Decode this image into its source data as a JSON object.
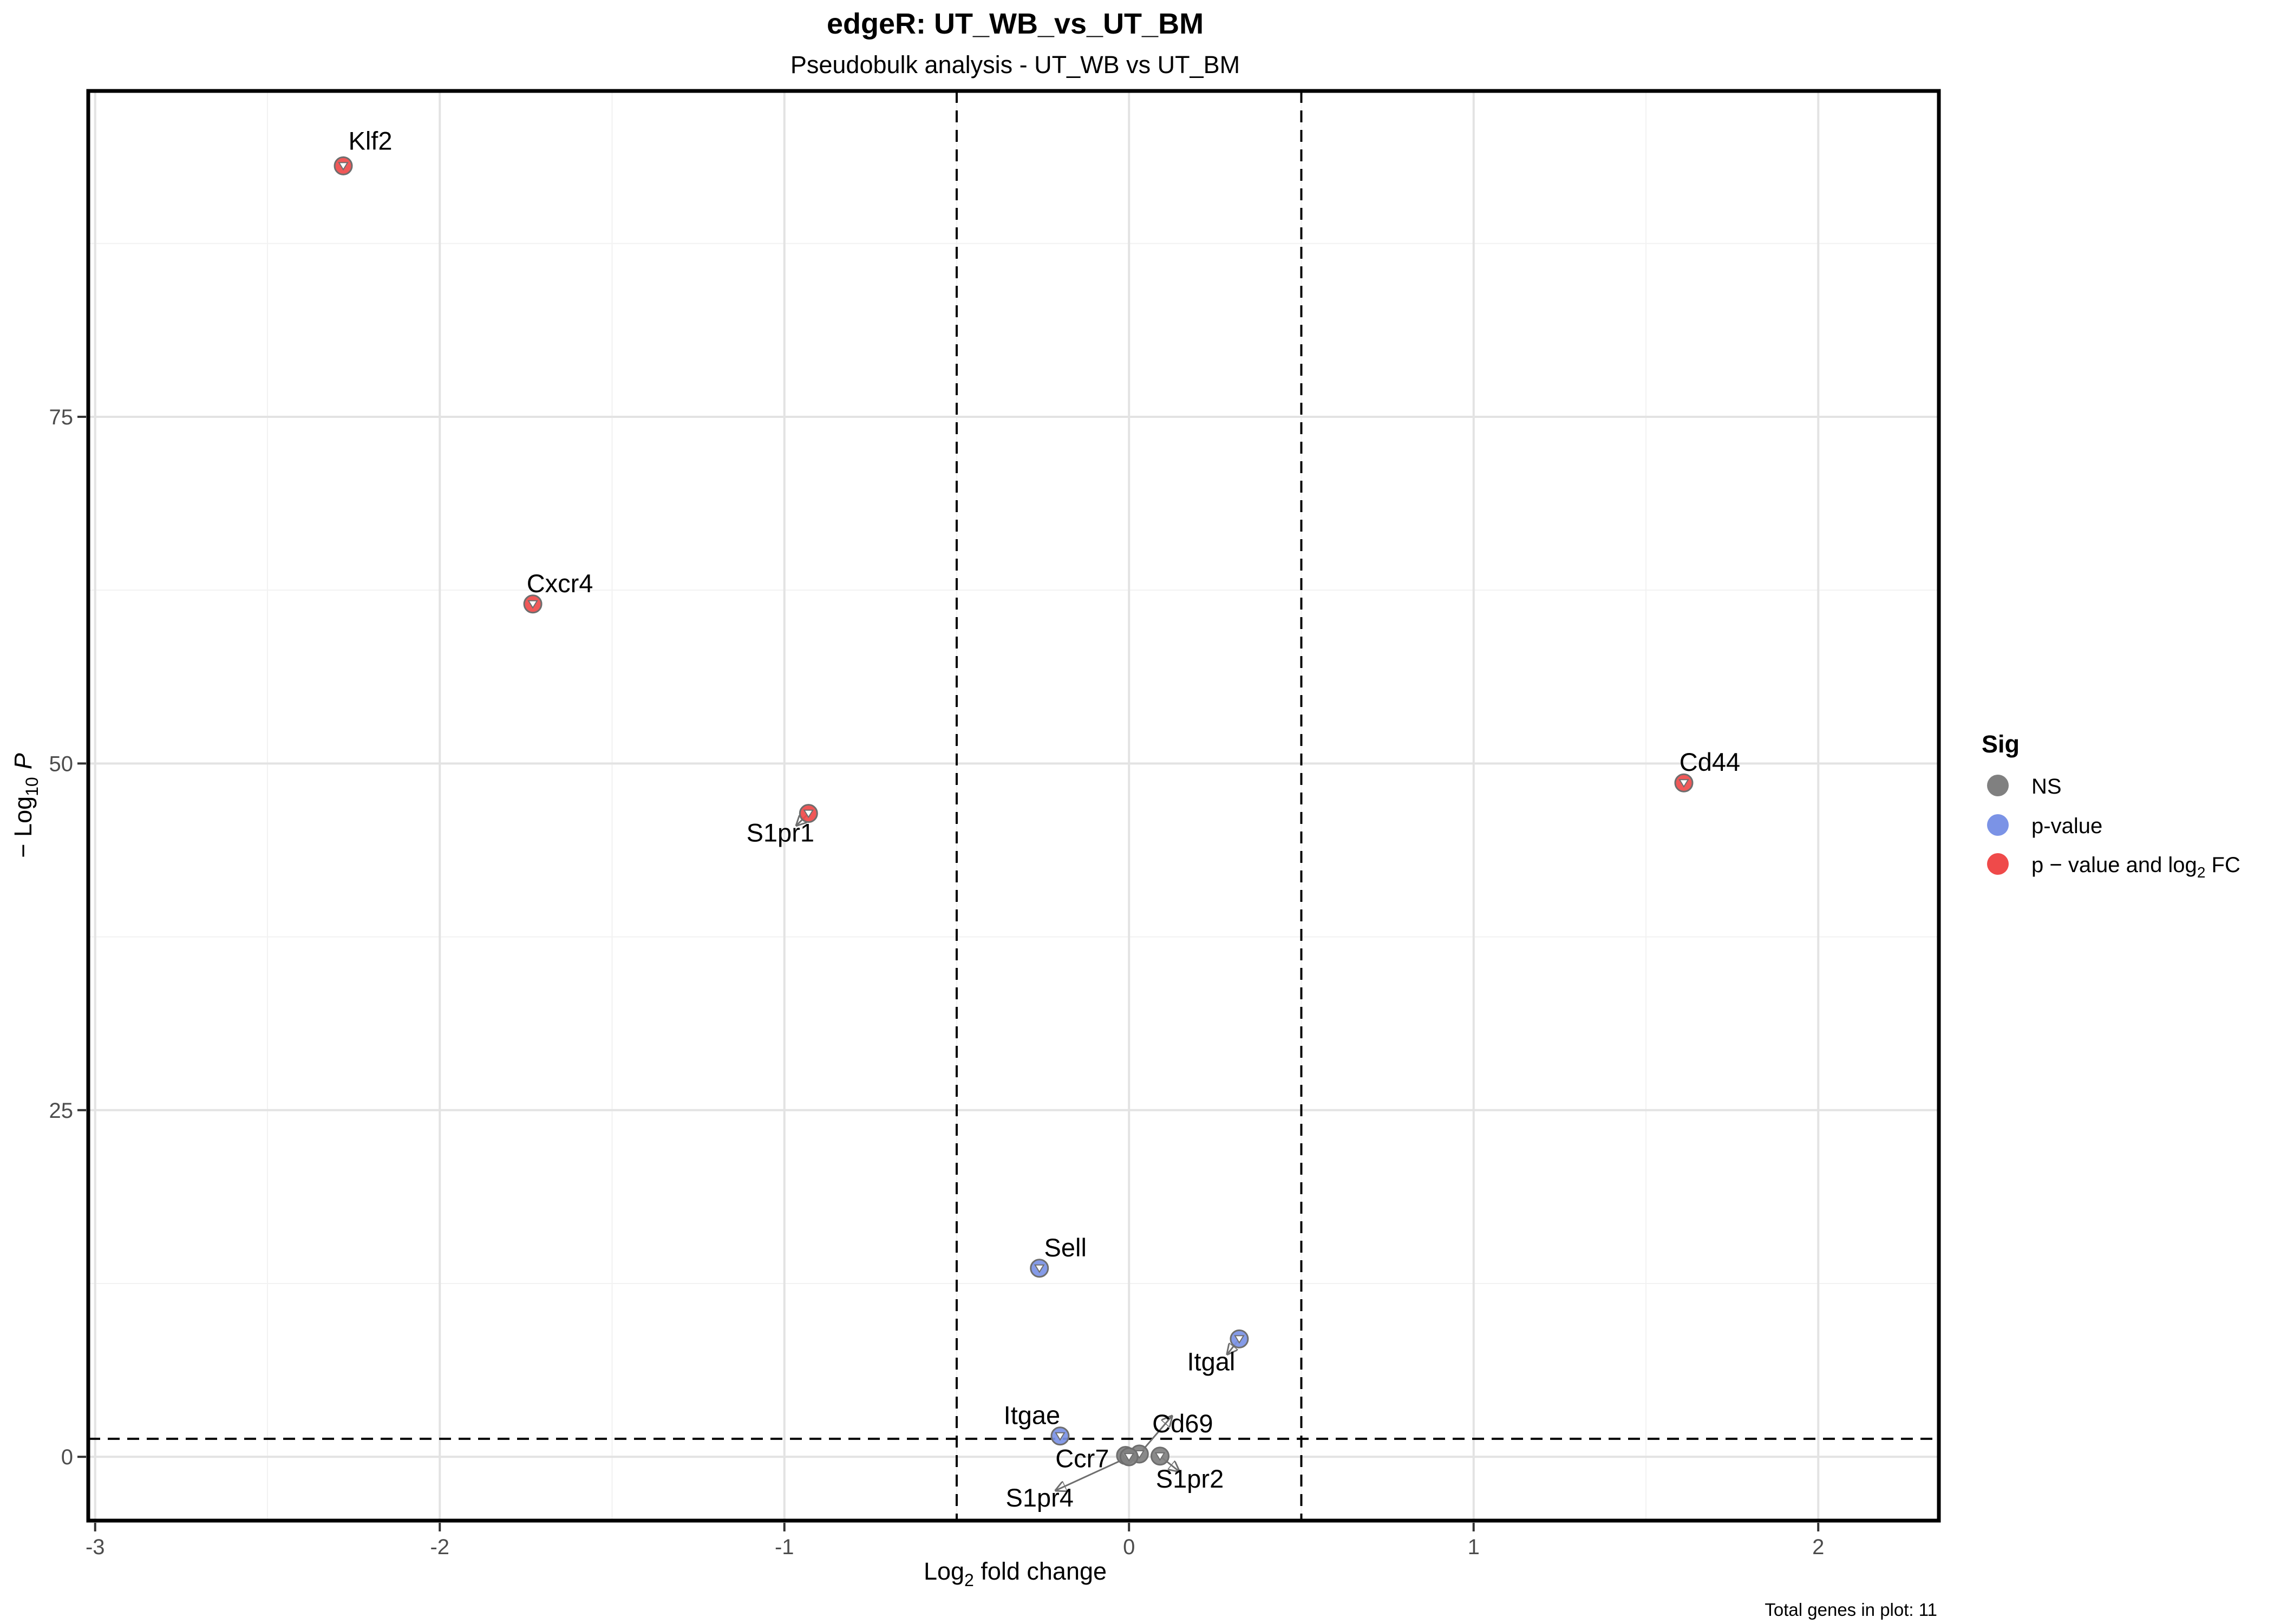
{
  "chart_data": {
    "type": "scatter",
    "title": "edgeR: UT_WB_vs_UT_BM",
    "subtitle": "Pseudobulk analysis - UT_WB vs UT_BM",
    "xlabel_base": "Log",
    "xlabel_sub": "2",
    "xlabel_rest": " fold change",
    "ylabel_prefix": "− Log",
    "ylabel_sub": "10",
    "ylabel_var": "P",
    "caption": "Total genes in plot: 11",
    "xlim": [
      -3.02,
      2.35
    ],
    "ylim": [
      -4.6,
      98.5
    ],
    "x_ticks": [
      -3,
      -2,
      -1,
      0,
      1,
      2
    ],
    "x_tick_labels": [
      "-3",
      "-2",
      "-1",
      "0",
      "1",
      "2"
    ],
    "y_ticks": [
      0,
      25,
      50,
      75
    ],
    "y_tick_labels": [
      "0",
      "25",
      "50",
      "75"
    ],
    "fc_cutoff": 0.5,
    "p_cutoff_log": 1.3,
    "grid": true,
    "legend": {
      "title": "Sig",
      "position": "right",
      "items": [
        {
          "key": "NS",
          "label": "NS",
          "color": "#808080"
        },
        {
          "key": "p",
          "label": "p-value",
          "color": "#7b93e6"
        },
        {
          "key": "both",
          "label_base": "p − value and log",
          "label_sub": "2",
          "label_rest": " FC",
          "color": "#ef4a4a"
        }
      ]
    },
    "points": [
      {
        "gene": "Klf2",
        "x": -2.28,
        "y": 93.1,
        "sig": "both"
      },
      {
        "gene": "Cxcr4",
        "x": -1.73,
        "y": 61.5,
        "sig": "both"
      },
      {
        "gene": "S1pr1",
        "x": -0.93,
        "y": 46.4,
        "sig": "both"
      },
      {
        "gene": "Cd44",
        "x": 1.61,
        "y": 48.6,
        "sig": "both"
      },
      {
        "gene": "Sell",
        "x": -0.26,
        "y": 13.6,
        "sig": "p"
      },
      {
        "gene": "Itgal",
        "x": 0.32,
        "y": 8.5,
        "sig": "p"
      },
      {
        "gene": "Itgae",
        "x": -0.2,
        "y": 1.5,
        "sig": "p"
      },
      {
        "gene": "Cd69",
        "x": 0.03,
        "y": 0.2,
        "sig": "NS"
      },
      {
        "gene": "Ccr7",
        "x": -0.01,
        "y": 0.1,
        "sig": "NS"
      },
      {
        "gene": "S1pr2",
        "x": 0.09,
        "y": 0.05,
        "sig": "NS"
      },
      {
        "gene": "S1pr4",
        "x": 0.0,
        "y": 0.0,
        "sig": "NS"
      }
    ]
  }
}
